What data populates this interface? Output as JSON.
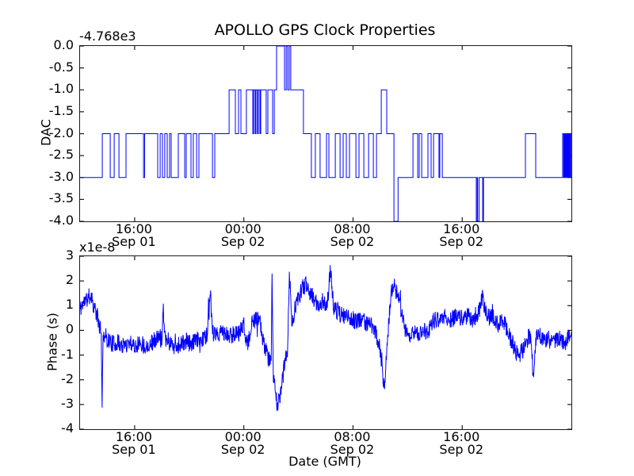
{
  "figure": {
    "title": "APOLLO GPS Clock Properties",
    "xlabel": "Date (GMT)",
    "line_color": "#0000ff",
    "axis_color": "#1a1a1a",
    "background": "#ffffff"
  },
  "chart_data": [
    {
      "type": "line",
      "subplot": "top",
      "ylabel": "DAC",
      "y_offset_label": "-4.768e3",
      "ylim": [
        -4.0,
        0.0
      ],
      "yticks": [
        {
          "value": 0.0,
          "label": "0.0"
        },
        {
          "value": -0.5,
          "label": "-0.5"
        },
        {
          "value": -1.0,
          "label": "-1.0"
        },
        {
          "value": -1.5,
          "label": "-1.5"
        },
        {
          "value": -2.0,
          "label": "-2.0"
        },
        {
          "value": -2.5,
          "label": "-2.5"
        },
        {
          "value": -3.0,
          "label": "-3.0"
        },
        {
          "value": -3.5,
          "label": "-3.5"
        },
        {
          "value": -4.0,
          "label": "-4.0"
        }
      ],
      "x_hours_range": [
        0,
        36
      ],
      "xticks": [
        {
          "hours": 4,
          "time": "16:00",
          "date": "Sep 01"
        },
        {
          "hours": 12,
          "time": "00:00",
          "date": "Sep 02"
        },
        {
          "hours": 20,
          "time": "08:00",
          "date": "Sep 02"
        },
        {
          "hours": 28,
          "time": "16:00",
          "date": "Sep 02"
        }
      ],
      "grid": false,
      "legend": "none",
      "line_style": "steps-post",
      "dac_steps": [
        [
          0,
          -3
        ],
        [
          1.63,
          -2
        ],
        [
          2.21,
          -3
        ],
        [
          2.5,
          -2
        ],
        [
          2.85,
          -3
        ],
        [
          3.37,
          -2
        ],
        [
          4.65,
          -3
        ],
        [
          4.73,
          -2
        ],
        [
          5.69,
          -3
        ],
        [
          5.87,
          -2
        ],
        [
          6.04,
          -3
        ],
        [
          6.21,
          -2
        ],
        [
          6.39,
          -3
        ],
        [
          6.56,
          -2
        ],
        [
          6.68,
          -3
        ],
        [
          7.2,
          -2
        ],
        [
          7.67,
          -3
        ],
        [
          7.78,
          -2
        ],
        [
          8.13,
          -3
        ],
        [
          8.3,
          -2
        ],
        [
          8.54,
          -3
        ],
        [
          8.71,
          -2
        ],
        [
          9.7,
          -3
        ],
        [
          9.87,
          -2
        ],
        [
          10.92,
          -1
        ],
        [
          11.38,
          -2
        ],
        [
          11.61,
          -1
        ],
        [
          11.79,
          -2
        ],
        [
          12.19,
          -1
        ],
        [
          12.66,
          -2
        ],
        [
          12.72,
          -1
        ],
        [
          12.83,
          -2
        ],
        [
          12.89,
          -1
        ],
        [
          13.0,
          -2
        ],
        [
          13.06,
          -1
        ],
        [
          13.18,
          -2
        ],
        [
          13.24,
          -1
        ],
        [
          13.64,
          -2
        ],
        [
          13.76,
          -1
        ],
        [
          14.11,
          -2
        ],
        [
          14.23,
          -1
        ],
        [
          14.4,
          0
        ],
        [
          14.98,
          -1
        ],
        [
          15.1,
          0
        ],
        [
          15.21,
          -1
        ],
        [
          15.33,
          0
        ],
        [
          15.44,
          -1
        ],
        [
          16.37,
          -2
        ],
        [
          16.95,
          -3
        ],
        [
          17.24,
          -2
        ],
        [
          17.59,
          -3
        ],
        [
          18.06,
          -2
        ],
        [
          18.23,
          -3
        ],
        [
          18.7,
          -2
        ],
        [
          19.05,
          -3
        ],
        [
          19.28,
          -2
        ],
        [
          19.51,
          -3
        ],
        [
          19.74,
          -2
        ],
        [
          20.21,
          -3
        ],
        [
          20.44,
          -2
        ],
        [
          20.79,
          -3
        ],
        [
          21.14,
          -2
        ],
        [
          21.49,
          -3
        ],
        [
          21.72,
          -2
        ],
        [
          22.07,
          -1
        ],
        [
          22.47,
          -2
        ],
        [
          23.0,
          -4
        ],
        [
          23.3,
          -3
        ],
        [
          24.39,
          -2
        ],
        [
          24.74,
          -3
        ],
        [
          24.85,
          -2
        ],
        [
          25.03,
          -3
        ],
        [
          25.49,
          -2
        ],
        [
          25.72,
          -3
        ],
        [
          25.9,
          -2
        ],
        [
          26.3,
          -3
        ],
        [
          26.36,
          -2
        ],
        [
          26.54,
          -3
        ],
        [
          29.03,
          -4
        ],
        [
          29.1,
          -3
        ],
        [
          29.13,
          -4
        ],
        [
          29.24,
          -3
        ],
        [
          29.5,
          -4
        ],
        [
          29.56,
          -3
        ],
        [
          32.63,
          -2
        ],
        [
          33.39,
          -3
        ],
        [
          35.36,
          -2
        ],
        [
          35.43,
          -3
        ],
        [
          35.48,
          -2
        ],
        [
          35.53,
          -3
        ],
        [
          35.58,
          -2
        ],
        [
          35.63,
          -3
        ],
        [
          35.68,
          -2
        ],
        [
          35.73,
          -3
        ],
        [
          35.78,
          -2
        ],
        [
          35.83,
          -3
        ],
        [
          35.88,
          -2
        ],
        [
          35.93,
          -3
        ],
        [
          35.96,
          -2
        ]
      ]
    },
    {
      "type": "line",
      "subplot": "bottom",
      "ylabel": "Phase (s)",
      "y_offset_label": "x1e-8",
      "ylim": [
        -4,
        3
      ],
      "yticks": [
        {
          "value": 3,
          "label": "3"
        },
        {
          "value": 2,
          "label": "2"
        },
        {
          "value": 1,
          "label": "1"
        },
        {
          "value": 0,
          "label": "0"
        },
        {
          "value": -1,
          "label": "-1"
        },
        {
          "value": -2,
          "label": "-2"
        },
        {
          "value": -3,
          "label": "-3"
        },
        {
          "value": -4,
          "label": "-4"
        }
      ],
      "x_hours_range": [
        0,
        36
      ],
      "xticks": [
        {
          "hours": 4,
          "time": "16:00",
          "date": "Sep 01"
        },
        {
          "hours": 12,
          "time": "00:00",
          "date": "Sep 02"
        },
        {
          "hours": 20,
          "time": "08:00",
          "date": "Sep 02"
        },
        {
          "hours": 28,
          "time": "16:00",
          "date": "Sep 02"
        }
      ],
      "grid": false,
      "legend": "none",
      "trend": [
        [
          0,
          0.85
        ],
        [
          0.2,
          1.1
        ],
        [
          0.5,
          1.25
        ],
        [
          0.8,
          1.45
        ],
        [
          1.0,
          1.0
        ],
        [
          1.3,
          0.5
        ],
        [
          1.55,
          -0.2
        ],
        [
          1.62,
          -2.85
        ],
        [
          1.7,
          -0.1
        ],
        [
          2.0,
          -0.35
        ],
        [
          2.4,
          -0.55
        ],
        [
          2.8,
          -0.5
        ],
        [
          3.2,
          -0.65
        ],
        [
          3.6,
          -0.45
        ],
        [
          4.0,
          -0.6
        ],
        [
          4.4,
          -0.5
        ],
        [
          4.8,
          -0.65
        ],
        [
          5.2,
          -0.5
        ],
        [
          5.6,
          -0.35
        ],
        [
          6.0,
          -0.25
        ],
        [
          6.1,
          0.9
        ],
        [
          6.25,
          -0.3
        ],
        [
          6.6,
          -0.5
        ],
        [
          7.0,
          -0.65
        ],
        [
          7.4,
          -0.55
        ],
        [
          7.8,
          -0.45
        ],
        [
          8.2,
          -0.55
        ],
        [
          8.6,
          -0.4
        ],
        [
          9.0,
          -0.35
        ],
        [
          9.3,
          -0.15
        ],
        [
          9.55,
          1.45
        ],
        [
          9.7,
          -0.1
        ],
        [
          10.0,
          -0.25
        ],
        [
          10.4,
          -0.05
        ],
        [
          10.8,
          -0.25
        ],
        [
          11.2,
          -0.15
        ],
        [
          11.6,
          -0.1
        ],
        [
          12.0,
          0.2
        ],
        [
          12.3,
          -0.6
        ],
        [
          12.6,
          0.25
        ],
        [
          12.9,
          0.45
        ],
        [
          13.2,
          0.25
        ],
        [
          13.5,
          -0.6
        ],
        [
          13.75,
          -1.1
        ],
        [
          14.0,
          -1.3
        ],
        [
          14.07,
          2.7
        ],
        [
          14.15,
          -1.7
        ],
        [
          14.3,
          -2.5
        ],
        [
          14.45,
          -3.1
        ],
        [
          14.6,
          -2.75
        ],
        [
          14.75,
          -2.3
        ],
        [
          14.95,
          -1.5
        ],
        [
          15.2,
          -0.8
        ],
        [
          15.35,
          2.4
        ],
        [
          15.5,
          0.2
        ],
        [
          15.75,
          0.9
        ],
        [
          16.0,
          1.3
        ],
        [
          16.3,
          1.7
        ],
        [
          16.6,
          1.9
        ],
        [
          16.9,
          1.5
        ],
        [
          17.2,
          1.15
        ],
        [
          17.5,
          1.0
        ],
        [
          17.8,
          1.25
        ],
        [
          18.1,
          0.9
        ],
        [
          18.35,
          2.5
        ],
        [
          18.6,
          0.85
        ],
        [
          19.0,
          0.7
        ],
        [
          19.4,
          0.55
        ],
        [
          19.8,
          0.5
        ],
        [
          20.2,
          0.35
        ],
        [
          20.6,
          0.45
        ],
        [
          21.0,
          0.3
        ],
        [
          21.4,
          0.2
        ],
        [
          21.8,
          -0.3
        ],
        [
          22.1,
          -1.2
        ],
        [
          22.3,
          -2.4
        ],
        [
          22.5,
          -0.6
        ],
        [
          22.75,
          1.3
        ],
        [
          22.95,
          1.9
        ],
        [
          23.15,
          1.6
        ],
        [
          23.4,
          1.1
        ],
        [
          23.65,
          0.35
        ],
        [
          23.9,
          -0.05
        ],
        [
          24.2,
          -0.2
        ],
        [
          24.5,
          -0.05
        ],
        [
          24.8,
          -0.25
        ],
        [
          25.1,
          0.1
        ],
        [
          25.4,
          -0.15
        ],
        [
          25.7,
          0.25
        ],
        [
          26.0,
          0.45
        ],
        [
          26.4,
          0.35
        ],
        [
          26.8,
          0.55
        ],
        [
          27.2,
          0.4
        ],
        [
          27.6,
          0.65
        ],
        [
          28.0,
          0.45
        ],
        [
          28.4,
          0.6
        ],
        [
          28.8,
          0.35
        ],
        [
          29.2,
          0.75
        ],
        [
          29.5,
          1.35
        ],
        [
          29.8,
          0.5
        ],
        [
          30.2,
          0.55
        ],
        [
          30.6,
          0.25
        ],
        [
          31.0,
          0.4
        ],
        [
          31.4,
          -0.1
        ],
        [
          31.8,
          -0.7
        ],
        [
          32.1,
          -1.0
        ],
        [
          32.4,
          -0.85
        ],
        [
          32.7,
          -0.45
        ],
        [
          33.0,
          -0.15
        ],
        [
          33.2,
          -1.8
        ],
        [
          33.4,
          -0.3
        ],
        [
          33.7,
          -0.2
        ],
        [
          34.0,
          -0.5
        ],
        [
          34.3,
          -0.3
        ],
        [
          34.6,
          -0.55
        ],
        [
          34.9,
          -0.4
        ],
        [
          35.2,
          -0.35
        ],
        [
          35.5,
          -0.55
        ],
        [
          35.8,
          -0.25
        ],
        [
          36,
          -0.1
        ]
      ],
      "noise_amplitude": 0.36,
      "spike_probability": 0.012,
      "spike_scale": 2.2,
      "samples": 1600,
      "noise_seed": 11
    }
  ]
}
